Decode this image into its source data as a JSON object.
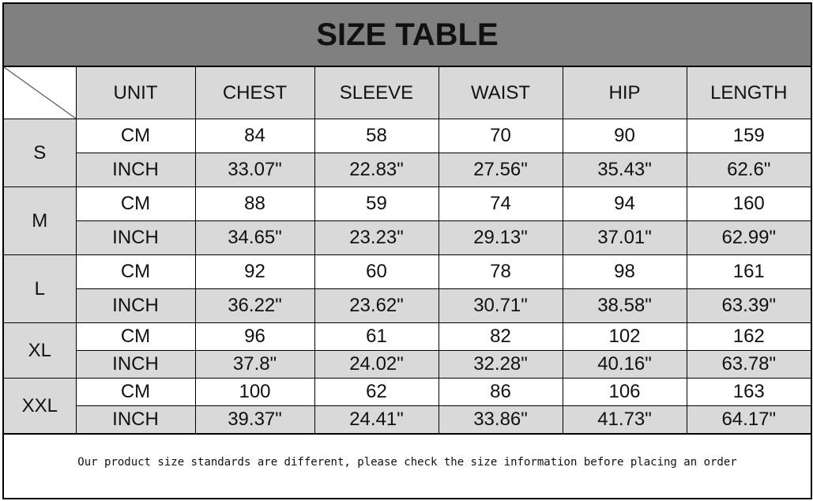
{
  "title": "SIZE TABLE",
  "headers": [
    "UNIT",
    "CHEST",
    "SLEEVE",
    "WAIST",
    "HIP",
    "LENGTH"
  ],
  "sizes": [
    {
      "size": "S",
      "cm": [
        "CM",
        "84",
        "58",
        "70",
        "90",
        "159"
      ],
      "inch": [
        "INCH",
        "33.07\"",
        "22.83\"",
        "27.56\"",
        "35.43\"",
        "62.6\""
      ]
    },
    {
      "size": "M",
      "cm": [
        "CM",
        "88",
        "59",
        "74",
        "94",
        "160"
      ],
      "inch": [
        "INCH",
        "34.65\"",
        "23.23\"",
        "29.13\"",
        "37.01\"",
        "62.99\""
      ]
    },
    {
      "size": "L",
      "cm": [
        "CM",
        "92",
        "60",
        "78",
        "98",
        "161"
      ],
      "inch": [
        "INCH",
        "36.22\"",
        "23.62\"",
        "30.71\"",
        "38.58\"",
        "63.39\""
      ]
    },
    {
      "size": "XL",
      "cm": [
        "CM",
        "96",
        "61",
        "82",
        "102",
        "162"
      ],
      "inch": [
        "INCH",
        "37.8\"",
        "24.02\"",
        "32.28\"",
        "40.16\"",
        "63.78\""
      ]
    },
    {
      "size": "XXL",
      "cm": [
        "CM",
        "100",
        "62",
        "86",
        "106",
        "163"
      ],
      "inch": [
        "INCH",
        "39.37\"",
        "24.41\"",
        "33.86\"",
        "41.73\"",
        "64.17\""
      ]
    }
  ],
  "footer": "Our product size standards are different, please check the size information before placing an order",
  "colors": {
    "title_bg": "#808080",
    "cell_gray": "#d9d9d9"
  }
}
